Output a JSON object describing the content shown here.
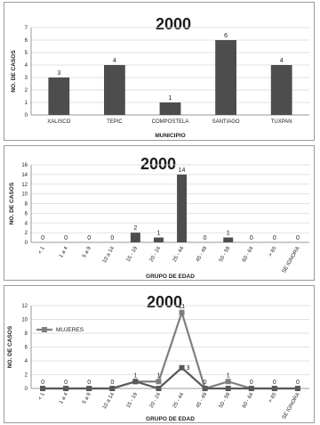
{
  "colors": {
    "bar": "#4d4d4d",
    "line_mujeres": "#7f7f7f",
    "line_total": "#595959",
    "grid": "#d9d9d9"
  },
  "chart_data": [
    {
      "type": "bar",
      "title": "2000",
      "xlabel": "MUNICIPIO",
      "ylabel": "NO. DE CASOS",
      "ylim": [
        0,
        7
      ],
      "yticks": [
        0,
        1,
        2,
        3,
        4,
        5,
        6,
        7
      ],
      "grid": true,
      "categories": [
        "XALISCO",
        "TEPIC",
        "COMPOSTELA",
        "SANTIAGO",
        "TUXPAN"
      ],
      "values": [
        3,
        4,
        1,
        6,
        4
      ],
      "data_labels": [
        "3",
        "4",
        "1",
        "6",
        "4"
      ]
    },
    {
      "type": "bar",
      "title": "2000",
      "xlabel": "GRUPO DE EDAD",
      "ylabel": "NO. DE CASOS",
      "ylim": [
        0,
        16
      ],
      "yticks": [
        0,
        2,
        4,
        6,
        8,
        10,
        12,
        14,
        16
      ],
      "grid": true,
      "categories": [
        "< 1",
        "1 a 4",
        "5 a 9",
        "10 a 14",
        "15 - 19",
        "20 - 24",
        "25 - 44",
        "45 - 49",
        "50 - 59",
        "60 - 64",
        "> 65",
        "SE IGNORA"
      ],
      "values": [
        0,
        0,
        0,
        0,
        2,
        1,
        14,
        0,
        1,
        0,
        0,
        0
      ],
      "data_labels": [
        "0",
        "0",
        "0",
        "0",
        "2",
        "1",
        "14",
        "0",
        "1",
        "0",
        "0",
        "0"
      ]
    },
    {
      "type": "line",
      "title": "2000",
      "xlabel": "GRUPO DE EDAD",
      "ylabel": "NO. DE CASOS",
      "ylim": [
        0,
        12
      ],
      "yticks": [
        0,
        2,
        4,
        6,
        8,
        10,
        12
      ],
      "grid": true,
      "legend_position": "top-left",
      "categories": [
        "< 1",
        "1 a 4",
        "5 a 9",
        "10 a 14",
        "15 - 19",
        "20 - 24",
        "25 - 44",
        "45 - 49",
        "50 - 59",
        "60 - 64",
        "> 65",
        "SE IGNORA"
      ],
      "series": [
        {
          "name": "MUJERES",
          "values": [
            0,
            0,
            0,
            0,
            1,
            1,
            11,
            0,
            1,
            0,
            0,
            0
          ],
          "labels": [
            "0",
            "0",
            "0",
            "0",
            "1",
            "1",
            "11",
            "0",
            "1",
            "0",
            "0",
            "0"
          ]
        },
        {
          "values": [
            0,
            0,
            0,
            0,
            1,
            0,
            3,
            0,
            0,
            0,
            0,
            0
          ],
          "labels": [
            "",
            "",
            "",
            "",
            "",
            "",
            "3",
            "",
            "",
            "",
            "",
            ""
          ]
        }
      ]
    }
  ]
}
